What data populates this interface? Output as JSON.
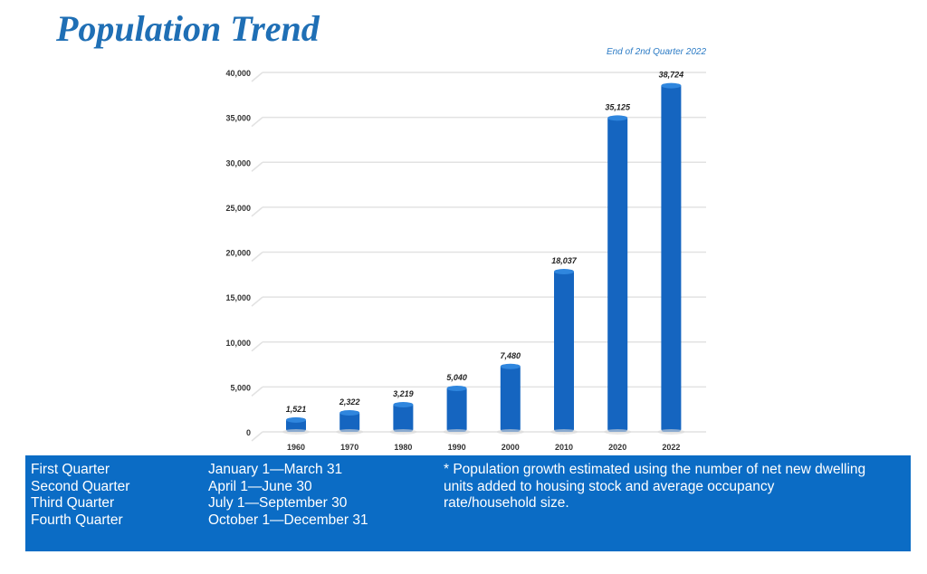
{
  "title": "Population Trend",
  "note": "End of 2nd Quarter 2022",
  "chart_data": {
    "type": "bar",
    "title": "Population Trend",
    "categories": [
      "1960",
      "1970",
      "1980",
      "1990",
      "2000",
      "2010",
      "2020",
      "2022"
    ],
    "values": [
      1521,
      2322,
      3219,
      5040,
      7480,
      18037,
      35125,
      38724
    ],
    "value_labels": [
      "1,521",
      "2,322",
      "3,219",
      "5,040",
      "7,480",
      "18,037",
      "35,125",
      "38,724"
    ],
    "yticks": [
      0,
      5000,
      10000,
      15000,
      20000,
      25000,
      30000,
      35000,
      40000
    ],
    "ytick_labels": [
      "0",
      "5,000",
      "10,000",
      "15,000",
      "20,000",
      "25,000",
      "30,000",
      "35,000",
      "40,000"
    ],
    "ylim": [
      0,
      40000
    ],
    "grid": true,
    "xlabel": "",
    "ylabel": "",
    "color": "#1565c0"
  },
  "quarters": [
    {
      "name": "First Quarter",
      "range": "January 1—March 31"
    },
    {
      "name": "Second Quarter",
      "range": "April 1—June 30"
    },
    {
      "name": "Third Quarter",
      "range": "July 1—September 30"
    },
    {
      "name": "Fourth Quarter",
      "range": "October 1—December 31"
    }
  ],
  "footnote": "* Population growth estimated using the number of net new dwelling units added to housing stock and average occupancy rate/household size."
}
